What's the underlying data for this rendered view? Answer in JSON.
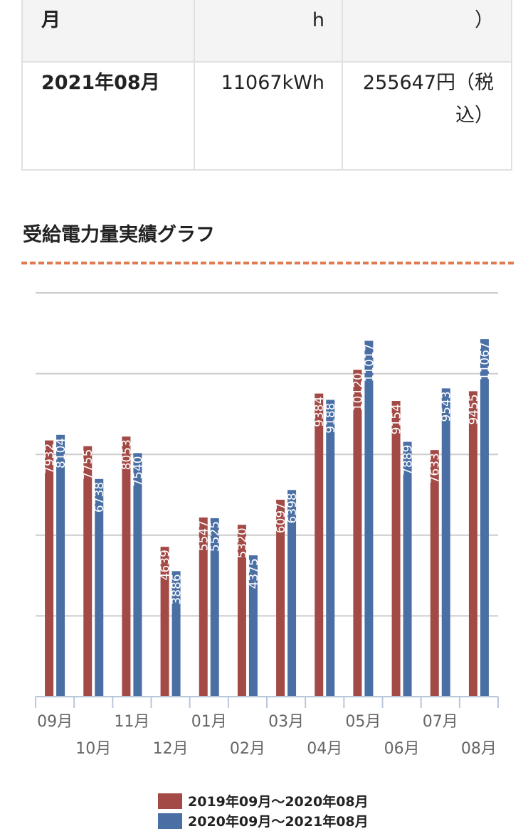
{
  "table": {
    "rows": [
      {
        "month": "月",
        "usage": "h",
        "cost": "）"
      },
      {
        "month": "2021年08月",
        "usage": "11067kWh",
        "cost": "255647円（税込）"
      }
    ]
  },
  "section_title": "受給電力量実績グラフ",
  "colors": {
    "series1": "#a34a46",
    "series2": "#4a6fa5",
    "grid": "#cccccc",
    "dash": "#e07a50"
  },
  "chart_data": {
    "type": "bar",
    "title": "",
    "xlabel": "",
    "ylabel": "",
    "ylim": [
      0,
      12500
    ],
    "grid": true,
    "legend_position": "bottom",
    "categories": [
      "09月",
      "10月",
      "11月",
      "12月",
      "01月",
      "02月",
      "03月",
      "04月",
      "05月",
      "06月",
      "07月",
      "08月"
    ],
    "series": [
      {
        "name": "2019年09月〜2020年08月",
        "values": [
          7932,
          7755,
          8053,
          4639,
          5547,
          5320,
          6097,
          9384,
          10120,
          9154,
          7633,
          9455
        ]
      },
      {
        "name": "2020年09月〜2021年08月",
        "values": [
          8104,
          6738,
          7540,
          3886,
          5525,
          4375,
          6398,
          9188,
          11017,
          7889,
          9543,
          11067
        ]
      }
    ]
  }
}
